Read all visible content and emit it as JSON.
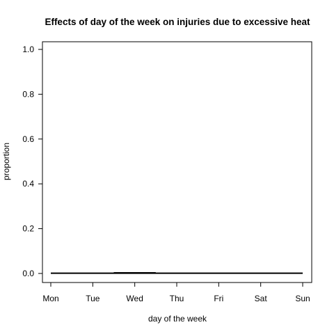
{
  "chart_data": {
    "type": "line",
    "title": "Effects of day of the week on injuries due to excessive heat",
    "xlabel": "day of the week",
    "ylabel": "proportion",
    "categories": [
      "Mon",
      "Tue",
      "Wed",
      "Thu",
      "Fri",
      "Sat",
      "Sun"
    ],
    "ylim": [
      0,
      1
    ],
    "yticks": [
      "0.0",
      "0.2",
      "0.4",
      "0.6",
      "0.8",
      "1.0"
    ],
    "series": [
      {
        "values": [
          0.001,
          0.001,
          0.001,
          0.001,
          0.001,
          0.001,
          0.001
        ],
        "lower": [
          0,
          0,
          0,
          0,
          0,
          0,
          0
        ],
        "upper": [
          0.002,
          0.002,
          0.005,
          0.002,
          0.002,
          0.002,
          0.002
        ]
      }
    ],
    "grid": false
  }
}
